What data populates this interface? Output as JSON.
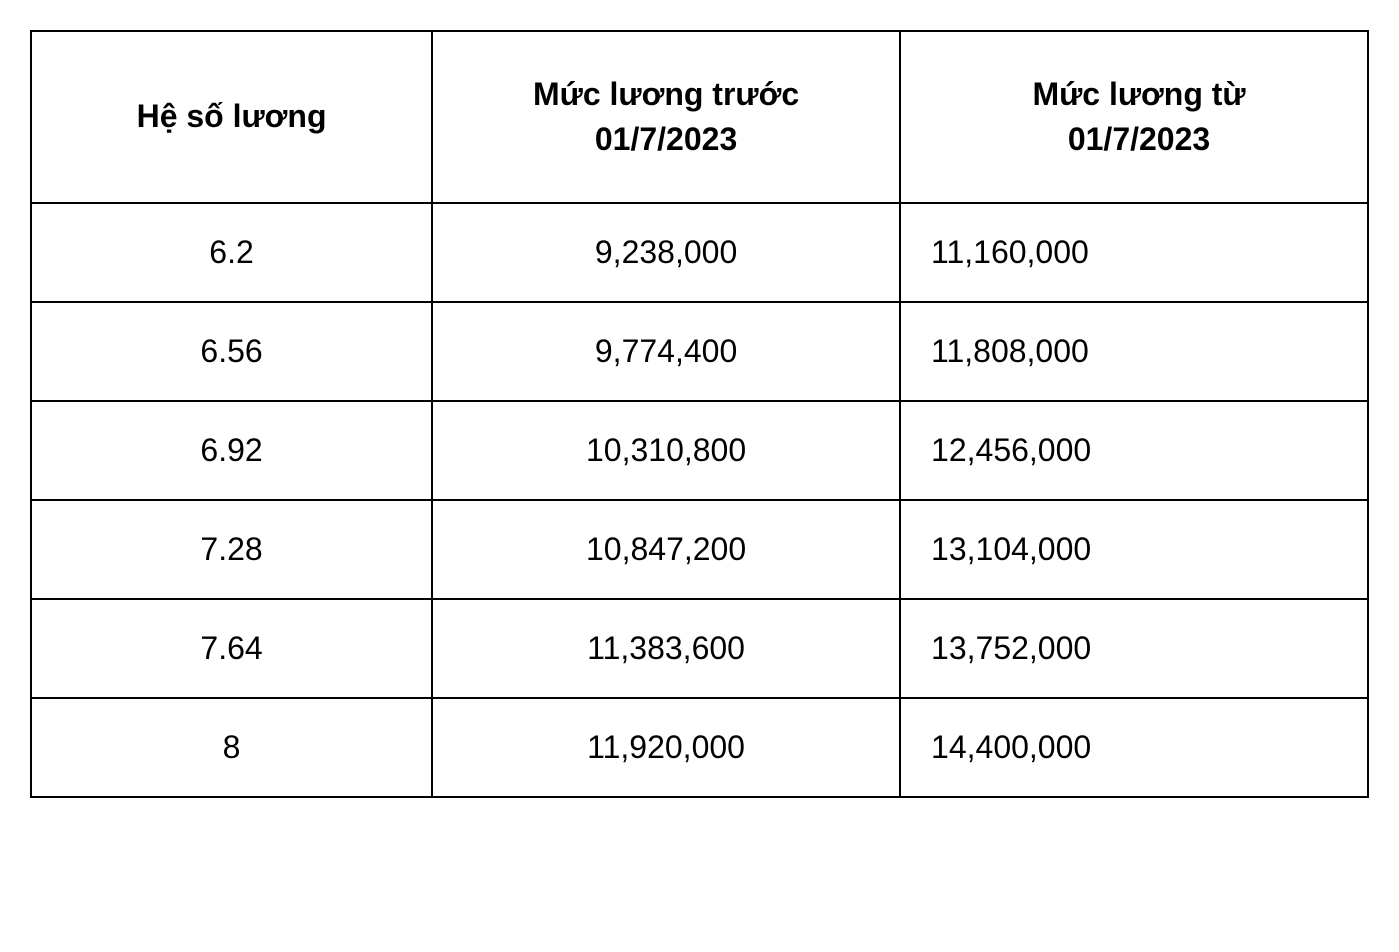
{
  "table": {
    "type": "table",
    "columns": [
      {
        "label": "Hệ số lương",
        "width_pct": 30,
        "alignment": "center"
      },
      {
        "label": "Mức lương trước\n01/7/2023",
        "width_pct": 35,
        "alignment": "center"
      },
      {
        "label": "Mức lương từ\n01/7/2023",
        "width_pct": 35,
        "alignment": "left"
      }
    ],
    "rows": [
      [
        "6.2",
        "9,238,000",
        "11,160,000"
      ],
      [
        "6.56",
        "9,774,400",
        "11,808,000"
      ],
      [
        "6.92",
        "10,310,800",
        "12,456,000"
      ],
      [
        "7.28",
        "10,847,200",
        "13,104,000"
      ],
      [
        "7.64",
        "11,383,600",
        "13,752,000"
      ],
      [
        "8",
        "11,920,000",
        "14,400,000"
      ]
    ],
    "border_color": "#000000",
    "border_width": 2,
    "background_color": "#ffffff",
    "text_color": "#000000",
    "header_fontsize": 32,
    "header_fontweight": 700,
    "cell_fontsize": 32,
    "cell_fontweight": 400,
    "header_padding": "40px 20px",
    "cell_padding": "30px 20px"
  }
}
